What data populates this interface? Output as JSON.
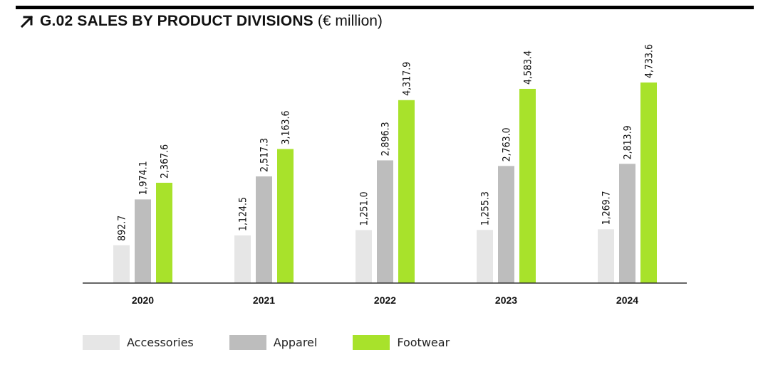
{
  "header": {
    "title": "G.02 SALES BY PRODUCT DIVISIONS",
    "unit": "(€ million)",
    "icon": "arrow-up-right-icon"
  },
  "colors": {
    "accessories": "#e6e6e6",
    "apparel": "#bdbdbd",
    "footwear": "#a8e22b",
    "axis": "#333333",
    "rule": "#000000"
  },
  "chart_data": {
    "type": "bar",
    "title": "G.02 SALES BY PRODUCT DIVISIONS (€ million)",
    "categories": [
      "2020",
      "2021",
      "2022",
      "2023",
      "2024"
    ],
    "series": [
      {
        "name": "Accessories",
        "color": "#e6e6e6",
        "values": [
          892.7,
          1124.5,
          1251.0,
          1255.3,
          1269.7
        ],
        "labels": [
          "892.7",
          "1,124.5",
          "1,251.0",
          "1,255.3",
          "1,269.7"
        ]
      },
      {
        "name": "Apparel",
        "color": "#bdbdbd",
        "values": [
          1974.1,
          2517.3,
          2896.3,
          2763.0,
          2813.9
        ],
        "labels": [
          "1,974.1",
          "2,517.3",
          "2,896.3",
          "2,763.0",
          "2,813.9"
        ]
      },
      {
        "name": "Footwear",
        "color": "#a8e22b",
        "values": [
          2367.6,
          3163.6,
          4317.9,
          4583.4,
          4733.6
        ],
        "labels": [
          "2,367.6",
          "3,163.6",
          "4,317.9",
          "4,583.4",
          "4,733.6"
        ]
      }
    ],
    "xlabel": "",
    "ylabel": "",
    "ylim": [
      0,
      4733.6
    ],
    "grid": false,
    "legend": "bottom-left"
  }
}
